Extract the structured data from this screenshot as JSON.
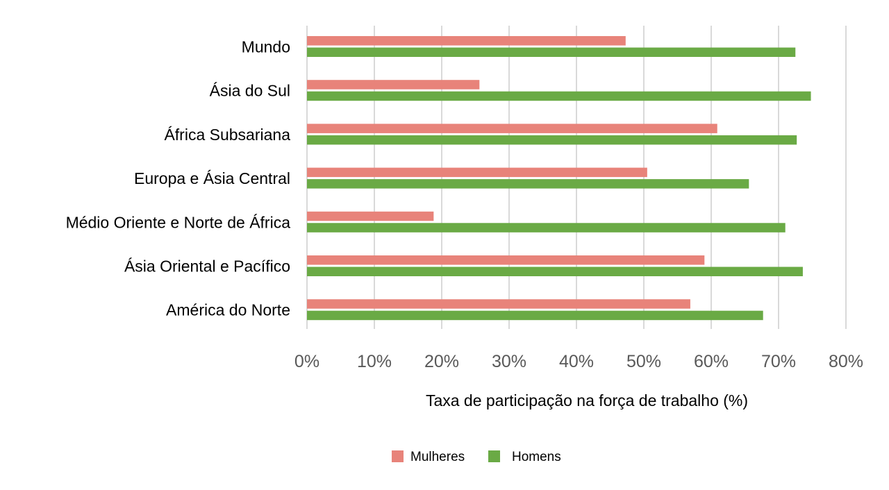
{
  "chart_data": {
    "type": "bar",
    "orientation": "horizontal",
    "categories": [
      "Mundo",
      "Ásia do Sul",
      "África Subsariana",
      "Europa e Ásia Central",
      "Médio Oriente e Norte de África",
      "Ásia Oriental e Pacífico",
      "América do Norte"
    ],
    "series": [
      {
        "name": "Mulheres",
        "color": "#e8837a",
        "values": [
          47.3,
          25.6,
          60.9,
          50.5,
          18.8,
          59.0,
          56.9
        ]
      },
      {
        "name": "Homens",
        "color": "#6aaa45",
        "values": [
          72.5,
          74.8,
          72.7,
          65.6,
          71.0,
          73.6,
          67.7
        ]
      }
    ],
    "xlabel": "Taxa de participação na força de trabalho (%)",
    "xlim": [
      0,
      80
    ],
    "xticks": [
      "0%",
      "10%",
      "20%",
      "30%",
      "40%",
      "50%",
      "60%",
      "70%",
      "80%"
    ],
    "grid": "vertical",
    "legend": "bottom"
  }
}
